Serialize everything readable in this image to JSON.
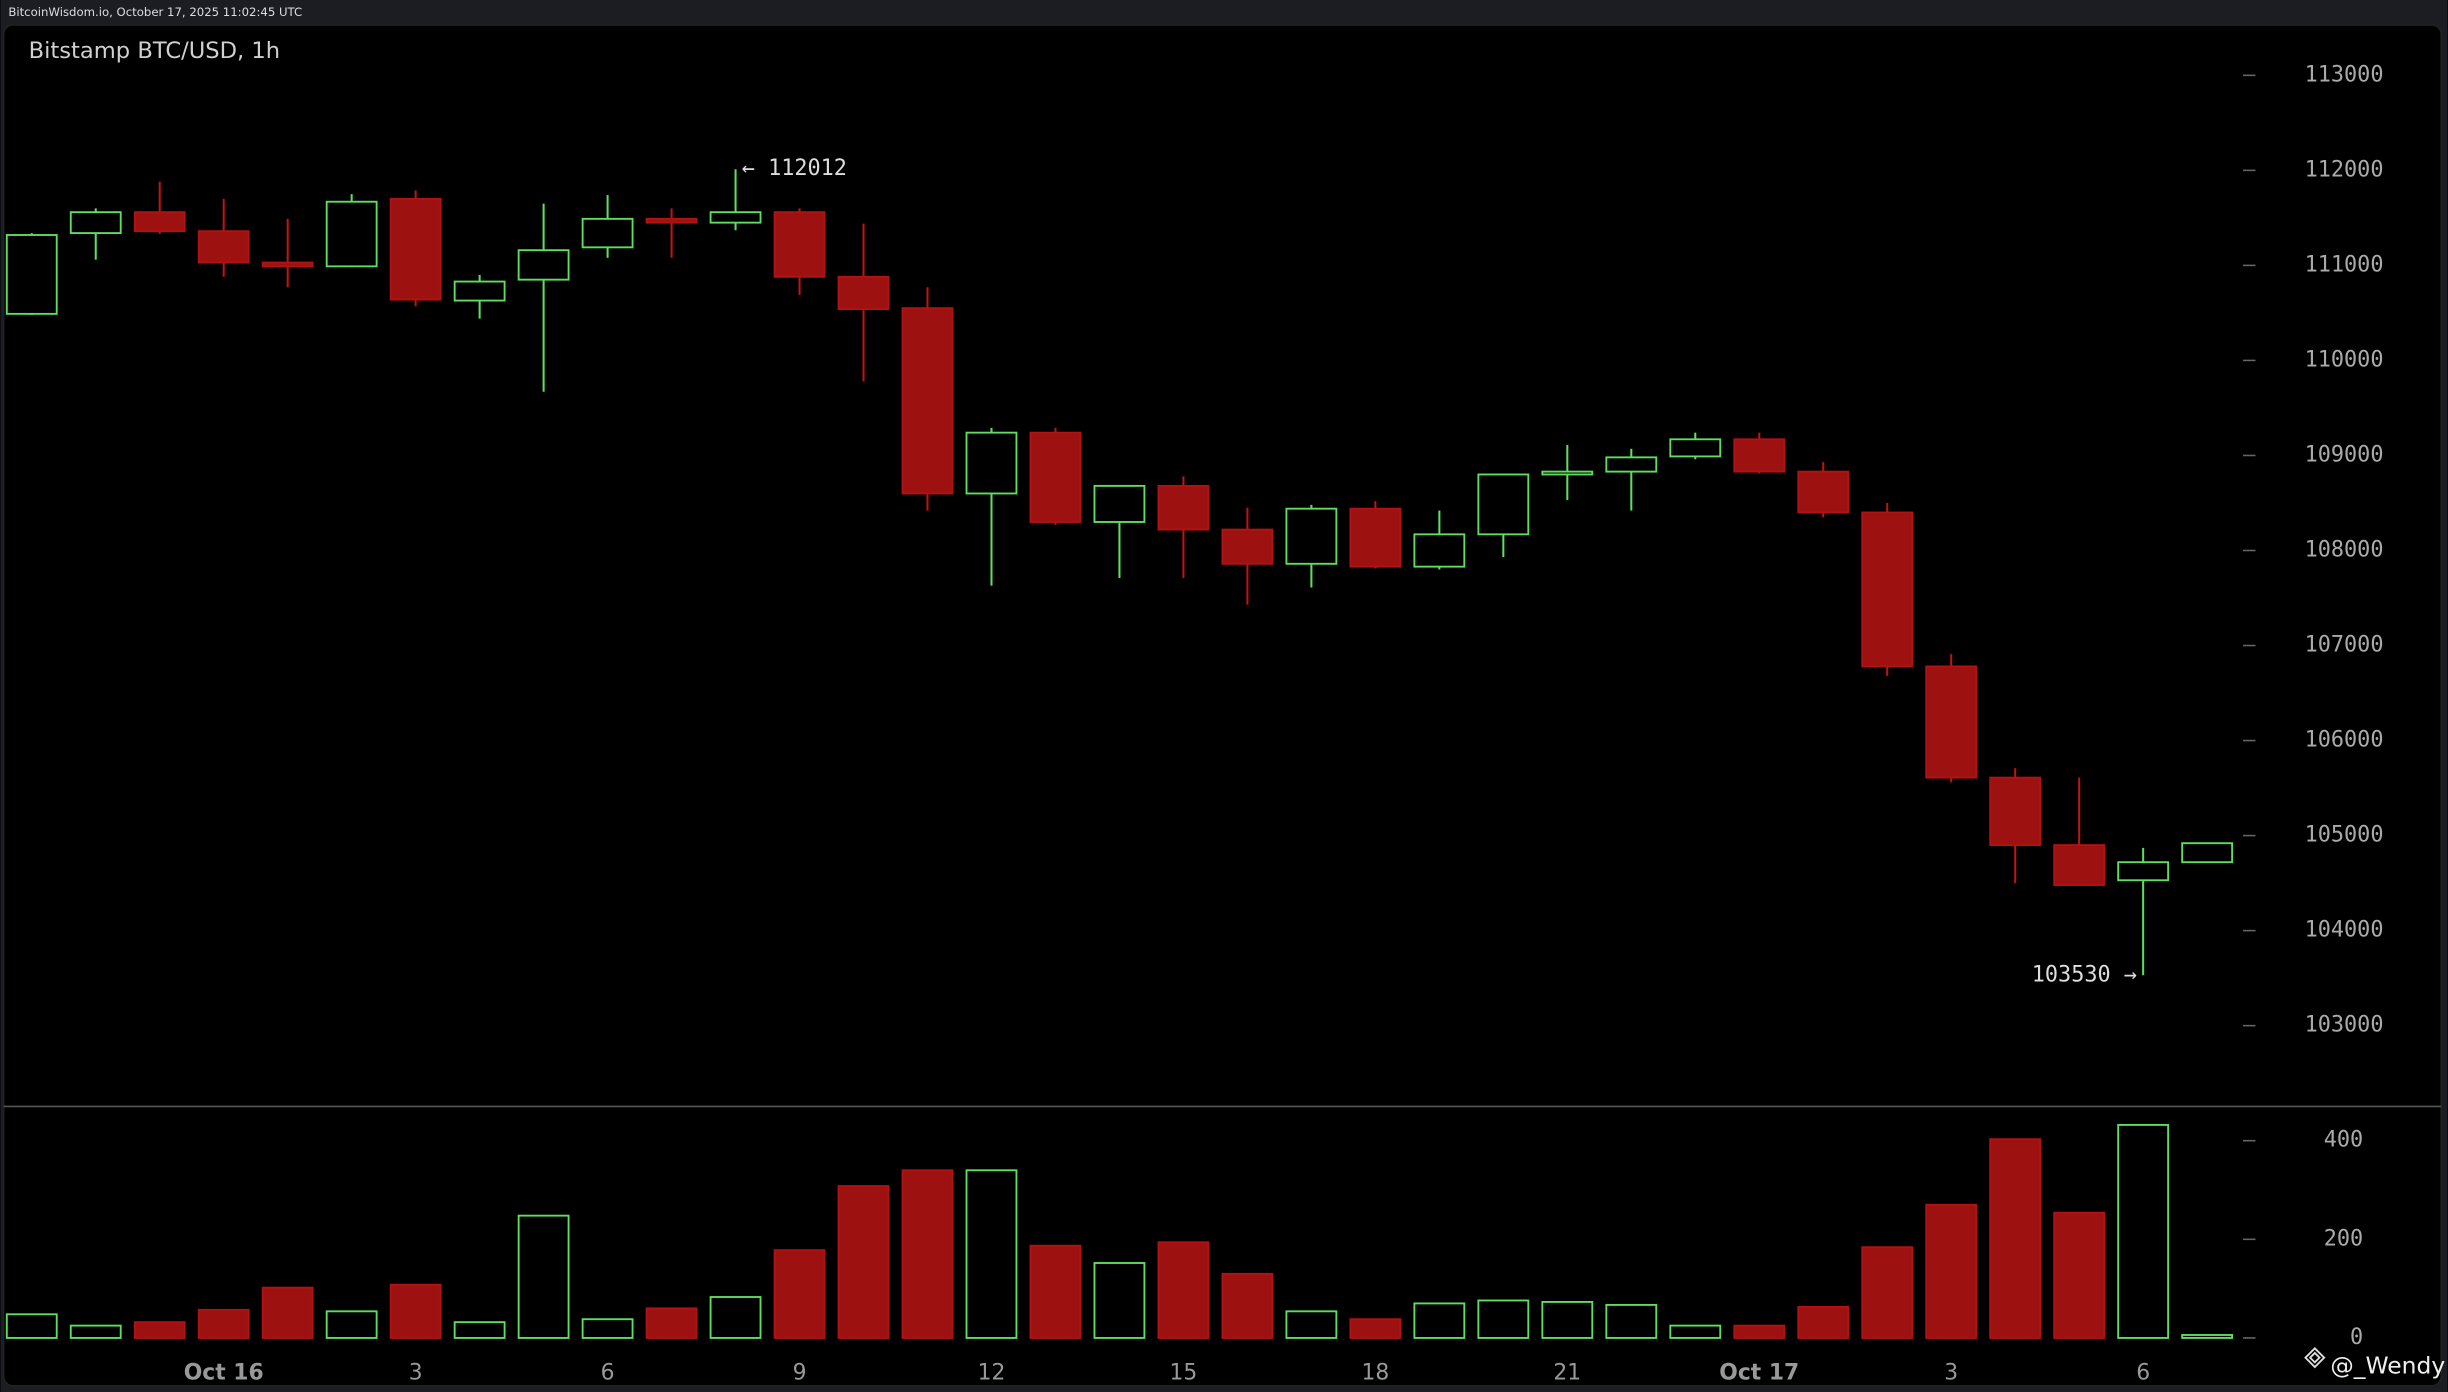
{
  "header": {
    "text": "BitcoinWisdom.io, October 17, 2025 11:02:45 UTC"
  },
  "watermark": "@_Wendy",
  "chart_data": {
    "type": "candlestick",
    "title": "Bitstamp BTC/USD, 1h",
    "categories": [
      null,
      null,
      null,
      "Oct 16",
      null,
      null,
      "3",
      null,
      null,
      "6",
      null,
      null,
      "9",
      null,
      null,
      "12",
      null,
      null,
      "15",
      null,
      null,
      "18",
      null,
      null,
      "21",
      null,
      null,
      "Oct 17",
      null,
      null,
      "3",
      null,
      null,
      "6",
      null
    ],
    "open": [
      110490,
      111340,
      111560,
      111360,
      111030,
      110990,
      111700,
      110630,
      110850,
      111190,
      111490,
      111450,
      111560,
      110880,
      110550,
      108600,
      109240,
      108300,
      108680,
      108220,
      107860,
      108440,
      107830,
      108170,
      108800,
      108830,
      108990,
      109170,
      108830,
      108400,
      106780,
      105610,
      104900,
      104530,
      104720
    ],
    "high": [
      111340,
      111600,
      111880,
      111700,
      111490,
      111750,
      111790,
      110900,
      111650,
      111740,
      111600,
      112012,
      111600,
      111440,
      110770,
      109290,
      109290,
      108680,
      108780,
      108450,
      108480,
      108520,
      108420,
      108800,
      109110,
      109070,
      109240,
      109240,
      108930,
      108500,
      106910,
      105710,
      105610,
      104870,
      104920
    ],
    "low": [
      110480,
      111060,
      111330,
      110880,
      110770,
      110980,
      110570,
      110440,
      109670,
      111080,
      111080,
      111370,
      110690,
      109780,
      108420,
      107630,
      108270,
      107710,
      107710,
      107430,
      107610,
      107810,
      107800,
      107930,
      108530,
      108420,
      108960,
      108810,
      108350,
      106680,
      105560,
      104500,
      104480,
      103530,
      104720
    ],
    "close": [
      111320,
      111560,
      111360,
      111030,
      110990,
      111670,
      110640,
      110830,
      111160,
      111490,
      111450,
      111560,
      110880,
      110540,
      108600,
      109240,
      108300,
      108680,
      108220,
      107860,
      108440,
      107830,
      108170,
      108800,
      108830,
      108980,
      109170,
      108830,
      108400,
      106780,
      105610,
      104900,
      104480,
      104720,
      104920
    ],
    "volume": [
      48,
      25,
      32,
      57,
      102,
      54,
      108,
      32,
      248,
      38,
      60,
      83,
      178,
      308,
      340,
      340,
      187,
      152,
      194,
      130,
      54,
      38,
      70,
      76,
      73,
      67,
      25,
      25,
      63,
      184,
      270,
      403,
      254,
      432,
      6
    ],
    "ylim": [
      102150,
      113530
    ],
    "yticks": [
      103000,
      104000,
      105000,
      106000,
      107000,
      108000,
      109000,
      110000,
      111000,
      112000,
      113000
    ],
    "volume_ylim": [
      -40,
      460
    ],
    "volume_yticks": [
      0,
      200,
      400
    ],
    "up_color": "#5ee05e",
    "down_color": "#9e1111",
    "annotations": [
      "← 112012",
      "103530 →"
    ]
  }
}
